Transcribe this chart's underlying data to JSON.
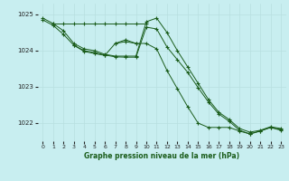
{
  "title": "Graphe pression niveau de la mer (hPa)",
  "bg_color": "#c8eef0",
  "line_color": "#1a5c1a",
  "grid_color": "#b8dfe0",
  "xlim": [
    -0.5,
    23.5
  ],
  "ylim": [
    1021.5,
    1025.3
  ],
  "yticks": [
    1022,
    1023,
    1024,
    1025
  ],
  "xticks": [
    0,
    1,
    2,
    3,
    4,
    5,
    6,
    7,
    8,
    9,
    10,
    11,
    12,
    13,
    14,
    15,
    16,
    17,
    18,
    19,
    20,
    21,
    22,
    23
  ],
  "lines": [
    {
      "x": [
        0,
        1,
        2,
        3,
        4,
        5,
        6,
        7,
        8,
        9,
        10,
        11,
        12,
        13,
        14,
        15,
        16,
        17,
        18,
        19,
        20,
        21,
        22,
        23
      ],
      "y": [
        1024.9,
        1024.75,
        1024.55,
        1024.2,
        1024.05,
        1024.0,
        1023.9,
        1023.85,
        1023.85,
        1023.85,
        1024.8,
        1024.9,
        1024.5,
        1024.0,
        1023.55,
        1023.1,
        1022.65,
        1022.3,
        1022.1,
        1021.85,
        1021.75,
        1021.8,
        1021.9,
        1021.85
      ]
    },
    {
      "x": [
        1,
        2,
        3,
        4,
        5,
        6,
        7,
        8,
        9,
        10
      ],
      "y": [
        1024.75,
        1024.75,
        1024.75,
        1024.75,
        1024.75,
        1024.75,
        1024.75,
        1024.75,
        1024.75,
        1024.75
      ]
    },
    {
      "x": [
        0,
        1,
        2,
        3,
        4,
        5,
        6,
        7,
        8,
        9,
        10,
        11,
        12,
        13,
        14,
        15,
        16,
        17,
        18,
        19,
        20,
        21,
        22,
        23
      ],
      "y": [
        1024.85,
        1024.7,
        1024.45,
        1024.15,
        1024.0,
        1023.95,
        1023.88,
        1023.83,
        1023.82,
        1023.82,
        1024.65,
        1024.6,
        1024.1,
        1023.75,
        1023.4,
        1022.98,
        1022.58,
        1022.25,
        1022.05,
        1021.8,
        1021.7,
        1021.78,
        1021.88,
        1021.82
      ]
    },
    {
      "x": [
        7,
        8,
        9,
        10,
        11,
        12,
        13,
        14,
        15,
        16,
        17,
        18,
        19,
        20,
        21,
        22,
        23
      ],
      "y": [
        1024.2,
        1024.25,
        1024.2,
        1024.2,
        1024.05,
        1023.45,
        1022.95,
        1022.45,
        1022.0,
        1021.88,
        1021.88,
        1021.88,
        1021.78,
        1021.7,
        1021.78,
        1021.88,
        1021.8
      ]
    },
    {
      "x": [
        3,
        4,
        5,
        6,
        7,
        8,
        9
      ],
      "y": [
        1024.15,
        1023.98,
        1023.92,
        1023.87,
        1024.2,
        1024.3,
        1024.2
      ]
    }
  ]
}
